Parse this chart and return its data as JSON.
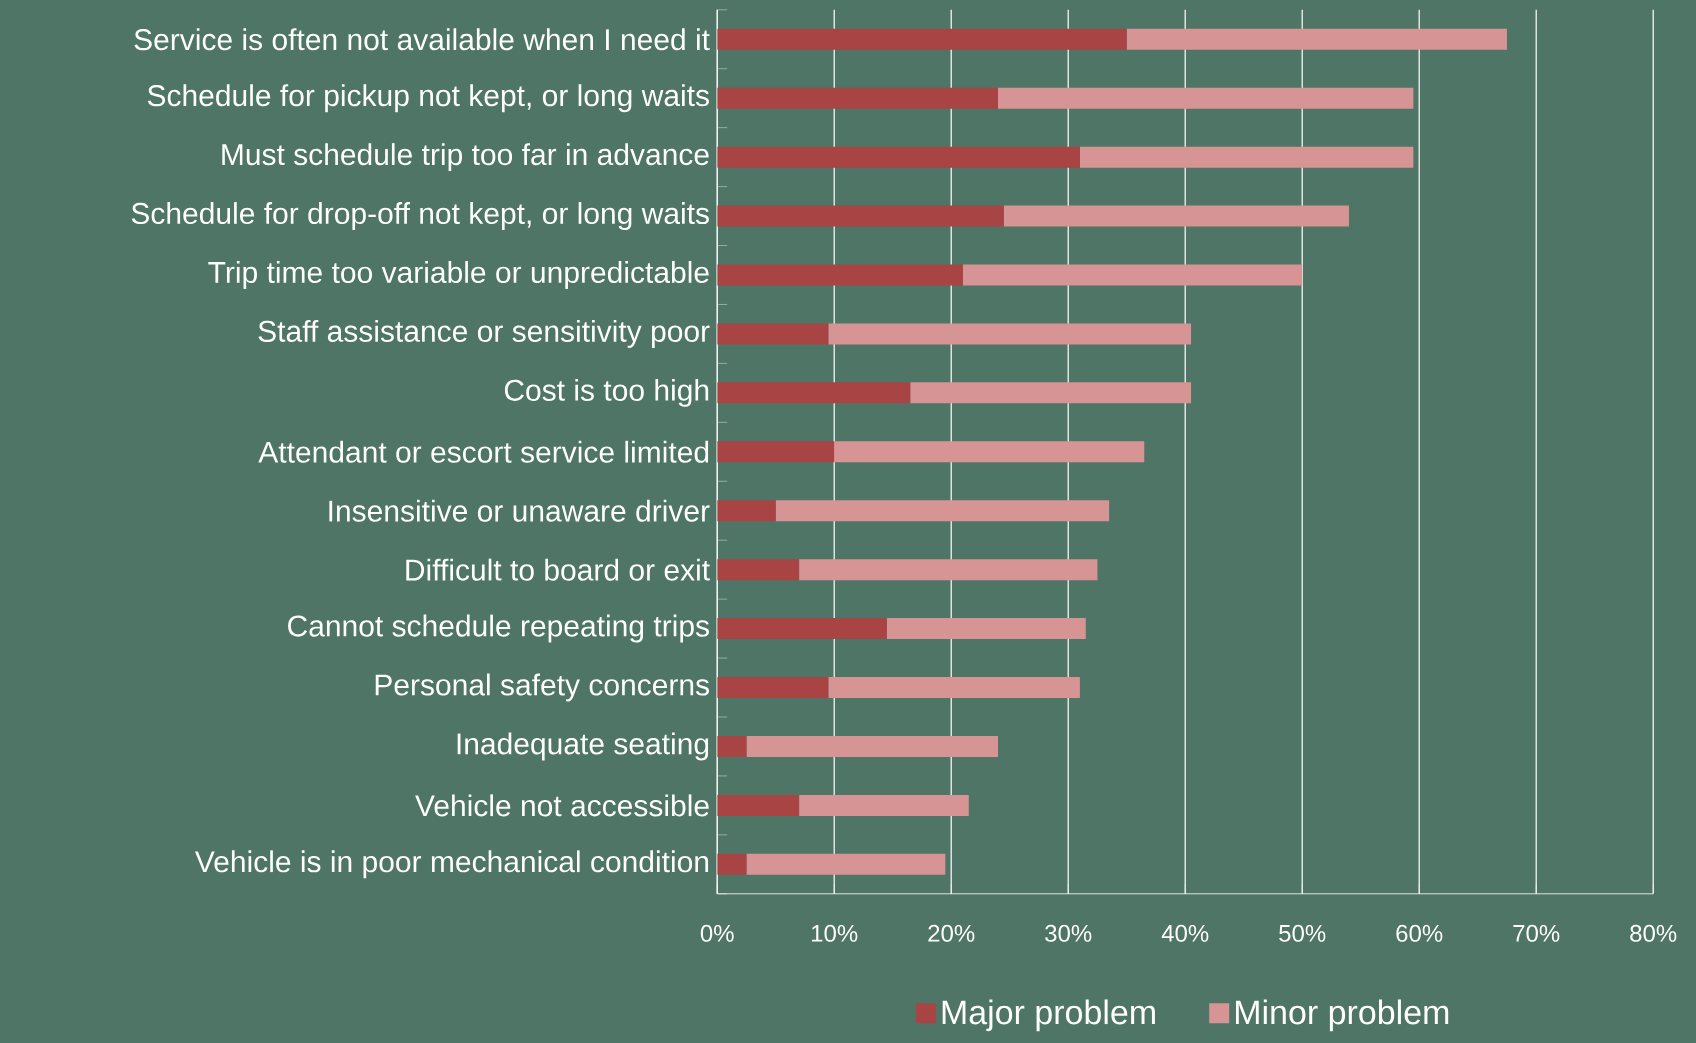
{
  "chart_data": {
    "type": "bar",
    "orientation": "horizontal",
    "stacked": true,
    "categories": [
      "Service is often not available when I need it",
      "Schedule for pickup not kept, or long waits",
      "Must schedule trip too far in advance",
      "Schedule for drop-off not kept, or long waits",
      "Trip time too variable or unpredictable",
      "Staff assistance or sensitivity poor",
      "Cost is too high",
      "Attendant or escort service limited",
      "Insensitive or unaware driver",
      "Difficult to board or exit",
      "Cannot schedule repeating trips",
      "Personal safety concerns",
      "Inadequate seating",
      "Vehicle not accessible",
      "Vehicle is in poor mechanical condition"
    ],
    "series": [
      {
        "name": "Major problem",
        "color": "#a84444",
        "values": [
          35,
          24,
          31,
          24.5,
          21,
          9.5,
          16.5,
          10,
          5,
          7,
          14.5,
          9.5,
          2.5,
          7,
          2.5
        ]
      },
      {
        "name": "Minor problem",
        "color": "#d69494",
        "values": [
          32.5,
          35.5,
          28.5,
          29.5,
          29,
          31,
          24,
          26.5,
          28.5,
          25.5,
          17,
          21.5,
          21.5,
          14.5,
          17
        ]
      }
    ],
    "xlim": [
      0,
      80
    ],
    "xticks": [
      {
        "value": 0,
        "label": "0%"
      },
      {
        "value": 10,
        "label": "10%"
      },
      {
        "value": 20,
        "label": "20%"
      },
      {
        "value": 30,
        "label": "30%"
      },
      {
        "value": 40,
        "label": "40%"
      },
      {
        "value": 50,
        "label": "50%"
      },
      {
        "value": 60,
        "label": "60%"
      },
      {
        "value": 70,
        "label": "70%"
      },
      {
        "value": 80,
        "label": "80%"
      }
    ],
    "grid": "x",
    "legend": "bottom"
  }
}
